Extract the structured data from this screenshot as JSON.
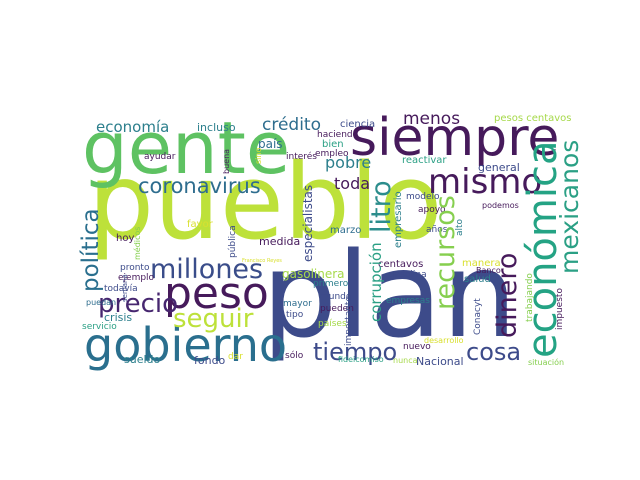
{
  "words": [
    {
      "text": "pueblo",
      "color": "#bde13a"
    },
    {
      "text": "plan",
      "color": "#3d4b8a"
    },
    {
      "text": "gente",
      "color": "#5ec262"
    },
    {
      "text": "siempre",
      "color": "#461a5b"
    },
    {
      "text": "gobierno",
      "color": "#2a6f8e"
    },
    {
      "text": "peso",
      "color": "#461a5b"
    },
    {
      "text": "mismo",
      "color": "#461a5b"
    },
    {
      "text": "económica",
      "color": "#24a384"
    },
    {
      "text": "coronavirus",
      "color": "#2e6d8e"
    },
    {
      "text": "millones",
      "color": "#3a4d8a"
    },
    {
      "text": "mexicanos",
      "color": "#2ba085"
    },
    {
      "text": "recursos",
      "color": "#86cf4f"
    },
    {
      "text": "precio",
      "color": "#46266f"
    },
    {
      "text": "seguir",
      "color": "#bde13a"
    },
    {
      "text": "tiempo",
      "color": "#3d4b8a"
    },
    {
      "text": "cosa",
      "color": "#3d4b8a"
    },
    {
      "text": "dinero",
      "color": "#461a5b"
    },
    {
      "text": "litro",
      "color": "#2c8d8c"
    },
    {
      "text": "economía",
      "color": "#2c7f8c"
    },
    {
      "text": "crédito",
      "color": "#2e6d8e"
    },
    {
      "text": "menos",
      "color": "#461a5b"
    },
    {
      "text": "política",
      "color": "#2a6f8e"
    },
    {
      "text": "toda",
      "color": "#461a5b"
    },
    {
      "text": "pobre",
      "color": "#2c7f8c"
    },
    {
      "text": "corrupción",
      "color": "#2ba085"
    },
    {
      "text": "gasolinera",
      "color": "#a6d94a"
    },
    {
      "text": "especialistas",
      "color": "#3d4b8a"
    },
    {
      "text": "medida",
      "color": "#461a5b"
    },
    {
      "text": "pesos centavos",
      "color": "#a6d94a"
    },
    {
      "text": "incluso",
      "color": "#2c7f8c"
    },
    {
      "text": "ciencia",
      "color": "#3d4b8a"
    },
    {
      "text": "haciendo",
      "color": "#461a5b"
    },
    {
      "text": "país",
      "color": "#2e6d8e"
    },
    {
      "text": "bien",
      "color": "#2ba085"
    },
    {
      "text": "empleo",
      "color": "#461a5b"
    },
    {
      "text": "interés",
      "color": "#461a5b"
    },
    {
      "text": "reactivar",
      "color": "#2ba085"
    },
    {
      "text": "general",
      "color": "#3d4b8a"
    },
    {
      "text": "modelo",
      "color": "#3d4b8a"
    },
    {
      "text": "apoyo",
      "color": "#461a5b"
    },
    {
      "text": "empresario",
      "color": "#2c7f8c"
    },
    {
      "text": "podemos",
      "color": "#461a5b"
    },
    {
      "text": "años",
      "color": "#3d4b8a"
    },
    {
      "text": "alto",
      "color": "#2c7f8c"
    },
    {
      "text": "marzo",
      "color": "#2e6d8e"
    },
    {
      "text": "pública",
      "color": "#3d4b8a"
    },
    {
      "text": "favor",
      "color": "#d9e030"
    },
    {
      "text": "hoy",
      "color": "#461a5b"
    },
    {
      "text": "médicos",
      "color": "#86cf4f"
    },
    {
      "text": "semana",
      "color": "#3d4b8a"
    },
    {
      "text": "buena",
      "color": "#461a5b"
    },
    {
      "text": "ayudar",
      "color": "#461a5b"
    },
    {
      "text": "sino",
      "color": "#d9e030"
    },
    {
      "text": "pronto",
      "color": "#3d4b8a"
    },
    {
      "text": "ejemplo",
      "color": "#461a5b"
    },
    {
      "text": "todavía",
      "color": "#3d4b8a"
    },
    {
      "text": "crisis",
      "color": "#2c7f8c"
    },
    {
      "text": "servicio",
      "color": "#2ba085"
    },
    {
      "text": "puedan",
      "color": "#2e6d8e"
    },
    {
      "text": "sueldo",
      "color": "#2c7f8c"
    },
    {
      "text": "fondo",
      "color": "#3d4b8a"
    },
    {
      "text": "dar",
      "color": "#d9e030"
    },
    {
      "text": "mayor",
      "color": "#2e6d8e"
    },
    {
      "text": "tipo",
      "color": "#3d4b8a"
    },
    {
      "text": "sólo",
      "color": "#461a5b"
    },
    {
      "text": "primero",
      "color": "#2c7f8c"
    },
    {
      "text": "mundo",
      "color": "#3d4b8a"
    },
    {
      "text": "pueden",
      "color": "#461a5b"
    },
    {
      "text": "países",
      "color": "#a6d94a"
    },
    {
      "text": "fideicomiso",
      "color": "#2ba085"
    },
    {
      "text": "importante",
      "color": "#3d4b8a"
    },
    {
      "text": "centavos",
      "color": "#461a5b"
    },
    {
      "text": "gasolina",
      "color": "#3d4b8a"
    },
    {
      "text": "empresas",
      "color": "#2c7f8c"
    },
    {
      "text": "nuevo",
      "color": "#461a5b"
    },
    {
      "text": "desarrollo",
      "color": "#d9e030"
    },
    {
      "text": "nunca",
      "color": "#a6d94a"
    },
    {
      "text": "Nacional",
      "color": "#3d4b8a"
    },
    {
      "text": "salud",
      "color": "#2c7f8c"
    },
    {
      "text": "manera",
      "color": "#d9e030"
    },
    {
      "text": "Banco",
      "color": "#461a5b"
    },
    {
      "text": "Conacyt",
      "color": "#3d4b8a"
    },
    {
      "text": "trabajando",
      "color": "#86cf4f"
    },
    {
      "text": "impuesto",
      "color": "#461a5b"
    },
    {
      "text": "situación",
      "color": "#86cf4f"
    },
    {
      "text": "Francisco Reyes",
      "color": "#d9e030"
    }
  ]
}
